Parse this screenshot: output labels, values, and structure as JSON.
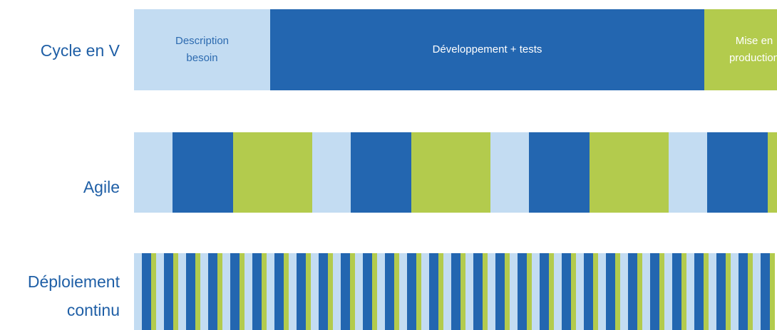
{
  "colors": {
    "analysis": "#c3dcf2",
    "development": "#2366b0",
    "deployment": "#b3cb4d",
    "label": "#1f5fa6"
  },
  "rows": {
    "v_cycle": {
      "label": "Cycle en V",
      "segments": [
        {
          "label": "Description\nbesoin",
          "phase": "analysis"
        },
        {
          "label": "Développement + tests",
          "phase": "development"
        },
        {
          "label": "Mise en\nproduction",
          "phase": "deployment"
        }
      ]
    },
    "agile": {
      "label": "Agile",
      "pattern": [
        "analysis",
        "development",
        "deployment"
      ],
      "iterations": 4
    },
    "continuous": {
      "label": "Déploiement\ncontinu",
      "pattern": [
        "analysis",
        "development",
        "deployment"
      ],
      "iterations": 29
    }
  }
}
